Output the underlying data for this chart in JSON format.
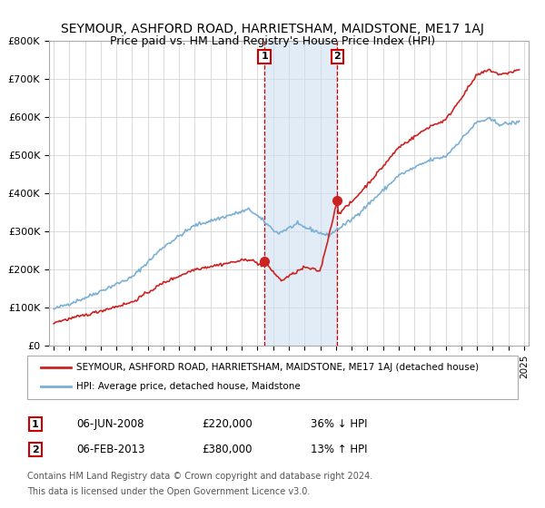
{
  "title": "SEYMOUR, ASHFORD ROAD, HARRIETSHAM, MAIDSTONE, ME17 1AJ",
  "subtitle": "Price paid vs. HM Land Registry's House Price Index (HPI)",
  "ylabel_ticks": [
    "£0",
    "£100K",
    "£200K",
    "£300K",
    "£400K",
    "£500K",
    "£600K",
    "£700K",
    "£800K"
  ],
  "ytick_values": [
    0,
    100000,
    200000,
    300000,
    400000,
    500000,
    600000,
    700000,
    800000
  ],
  "ylim": [
    0,
    800000
  ],
  "xlim_start": 1994.7,
  "xlim_end": 2025.3,
  "transaction1": {
    "date_num": 2008.44,
    "price": 220000,
    "label": "1",
    "pct": "36% ↓ HPI",
    "date_str": "06-JUN-2008",
    "price_str": "£220,000"
  },
  "transaction2": {
    "date_num": 2013.09,
    "price": 380000,
    "label": "2",
    "pct": "13% ↑ HPI",
    "date_str": "06-FEB-2013",
    "price_str": "£380,000"
  },
  "shade_color": "#cfe0f0",
  "shade_alpha": 0.6,
  "dashed_color": "#cc0000",
  "legend_line1": "SEYMOUR, ASHFORD ROAD, HARRIETSHAM, MAIDSTONE, ME17 1AJ (detached house)",
  "legend_line2": "HPI: Average price, detached house, Maidstone",
  "footer1": "Contains HM Land Registry data © Crown copyright and database right 2024.",
  "footer2": "This data is licensed under the Open Government Licence v3.0.",
  "price_line_color": "#cc2222",
  "hpi_line_color": "#7ab0d4",
  "background_color": "#ffffff",
  "grid_color": "#cccccc"
}
